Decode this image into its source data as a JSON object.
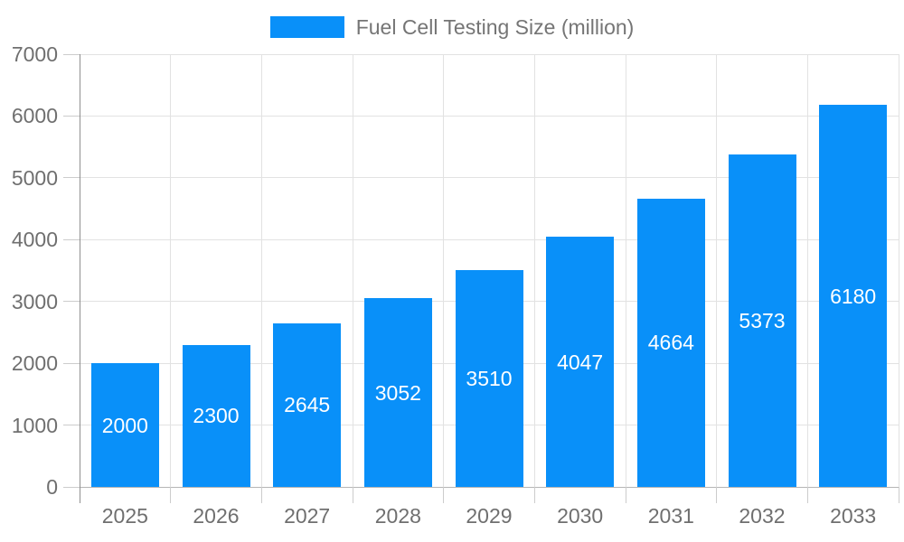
{
  "legend": {
    "label": "Fuel Cell Testing Size (million)",
    "swatch_color": "#0990f9"
  },
  "chart_data": {
    "type": "bar",
    "categories": [
      "2025",
      "2026",
      "2027",
      "2028",
      "2029",
      "2030",
      "2031",
      "2032",
      "2033"
    ],
    "values": [
      2000,
      2300,
      2645,
      3052,
      3510,
      4047,
      4664,
      5373,
      6180
    ],
    "series": [
      {
        "name": "Fuel Cell Testing Size (million)",
        "values": [
          2000,
          2300,
          2645,
          3052,
          3510,
          4047,
          4664,
          5373,
          6180
        ]
      }
    ],
    "title": "",
    "xlabel": "",
    "ylabel": "",
    "ylim": [
      0,
      7000
    ],
    "yticks": [
      0,
      1000,
      2000,
      3000,
      4000,
      5000,
      6000,
      7000
    ],
    "grid": true,
    "legend_position": "top-center",
    "bar_color": "#0990f9",
    "bar_label_color": "#ffffff",
    "axis_text_color": "#6f6f6f",
    "gridline_color": "#e2e2e2"
  }
}
